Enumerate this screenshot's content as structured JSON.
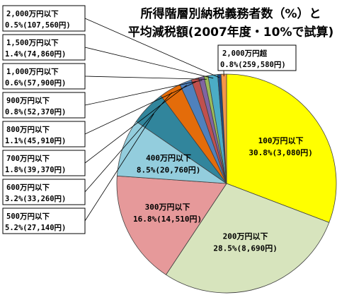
{
  "chart_data": {
    "type": "pie",
    "title_line1": "所得階層別納税義務者数（%）と",
    "title_line2": "平均減税額(2007年度・10%で試算)",
    "slices": [
      {
        "category": "100万円以下",
        "share": 30.8,
        "amount": "3,080円",
        "line2": "30.8%(3,080円)",
        "color": "#ffff00"
      },
      {
        "category": "200万円以下",
        "share": 28.5,
        "amount": "8,690円",
        "line2": "28.5%(8,690円)",
        "color": "#d7e4bd"
      },
      {
        "category": "300万円以下",
        "share": 16.8,
        "amount": "14,510円",
        "line2": "16.8%(14,510円)",
        "color": "#e6999a"
      },
      {
        "category": "400万円以下",
        "share": 8.5,
        "amount": "20,760円",
        "line2": "8.5%(20,760円)",
        "color": "#93cddd"
      },
      {
        "category": "500万円以下",
        "share": 5.2,
        "amount": "27,140円",
        "line2": "5.2%(27,140円)",
        "color": "#31859c"
      },
      {
        "category": "600万円以下",
        "share": 3.2,
        "amount": "33,260円",
        "line2": "3.2%(33,260円)",
        "color": "#e46c0a"
      },
      {
        "category": "700万円以下",
        "share": 1.8,
        "amount": "39,370円",
        "line2": "1.8%(39,370円)",
        "color": "#4f81bd"
      },
      {
        "category": "800万円以下",
        "share": 1.1,
        "amount": "45,910円",
        "line2": "1.1%(45,910円)",
        "color": "#c0504d"
      },
      {
        "category": "900万円以下",
        "share": 0.8,
        "amount": "52,370円",
        "line2": "0.8%(52,370円)",
        "color": "#8064a2"
      },
      {
        "category": "1,000万円以下",
        "share": 0.6,
        "amount": "57,900円",
        "line2": "0.6%(57,900円)",
        "color": "#9bbb59"
      },
      {
        "category": "1,500万円以下",
        "share": 1.4,
        "amount": "74,860円",
        "line2": "1.4%(74,860円)",
        "color": "#4bacc6"
      },
      {
        "category": "2,000万円以下",
        "share": 0.5,
        "amount": "107,560円",
        "line2": "0.5%(107,560円)",
        "color": "#1f497d"
      },
      {
        "category": "2,000万円超",
        "share": 0.8,
        "amount": "259,580円",
        "line2": "0.8%(259,580円)",
        "color": "#f79646"
      }
    ]
  }
}
